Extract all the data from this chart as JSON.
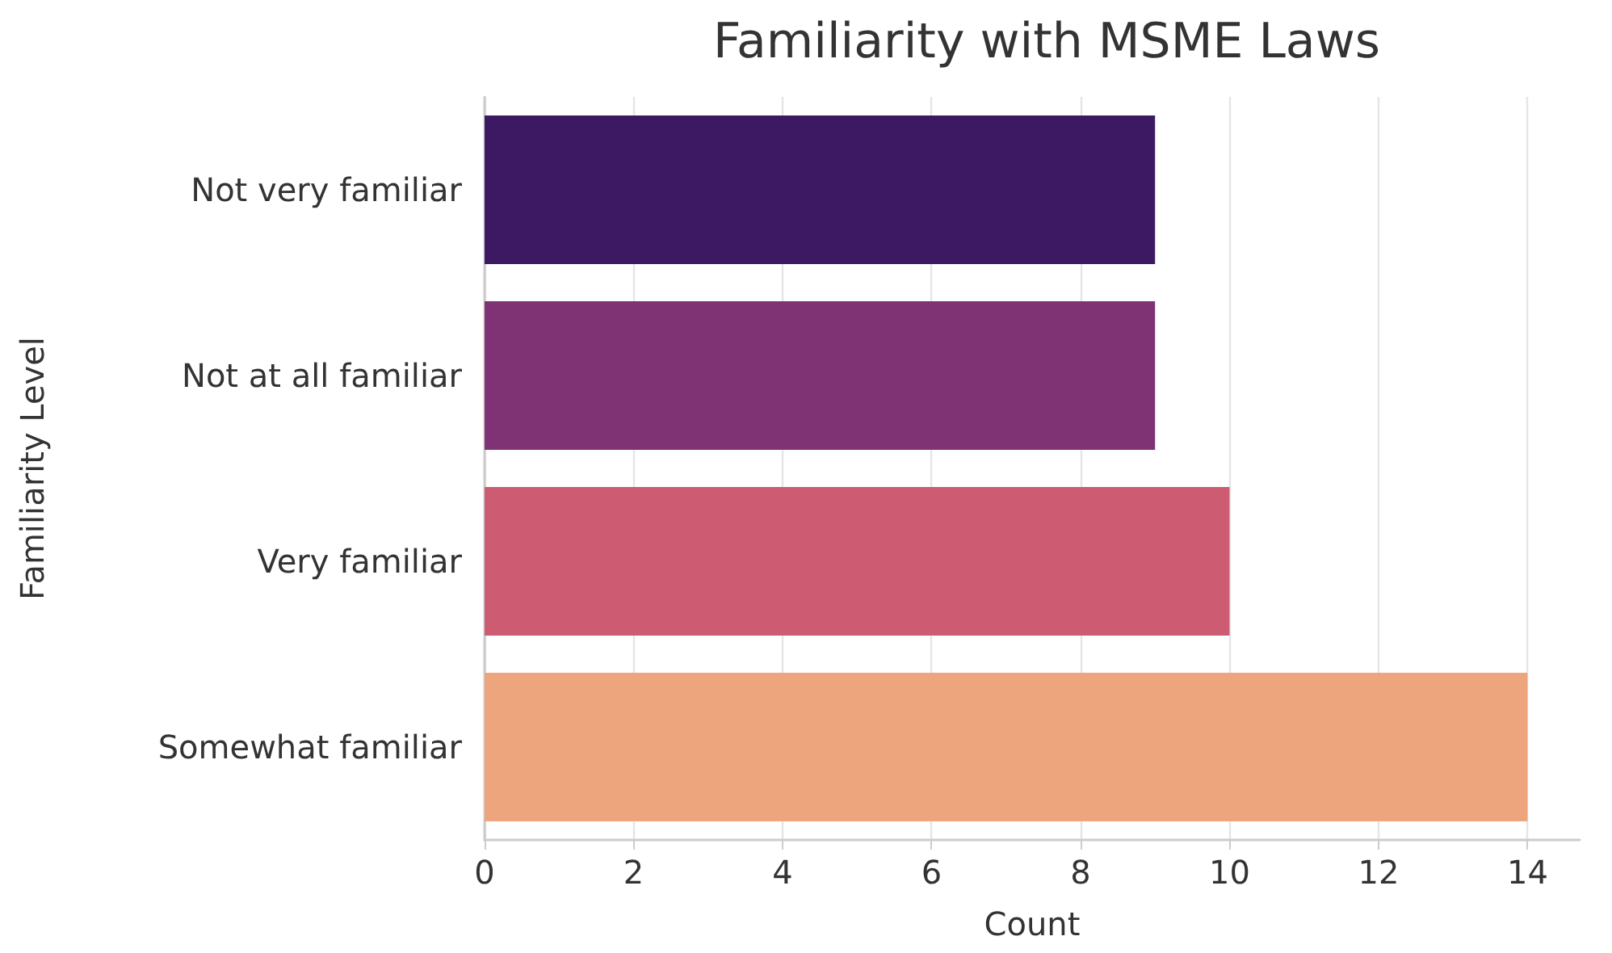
{
  "chart_data": {
    "type": "bar",
    "orientation": "horizontal",
    "title": "Familiarity with MSME Laws",
    "xlabel": "Count",
    "ylabel": "Familiarity Level",
    "categories": [
      "Not very familiar",
      "Not at all familiar",
      "Very familiar",
      "Somewhat familiar"
    ],
    "values": [
      9,
      9,
      10,
      14
    ],
    "colors": [
      "#3d1964",
      "#7f3374",
      "#cd5b72",
      "#eda57d"
    ],
    "xlim": [
      0,
      14.7
    ],
    "xticks": [
      0,
      2,
      4,
      6,
      8,
      10,
      12,
      14
    ],
    "grid": "x"
  }
}
